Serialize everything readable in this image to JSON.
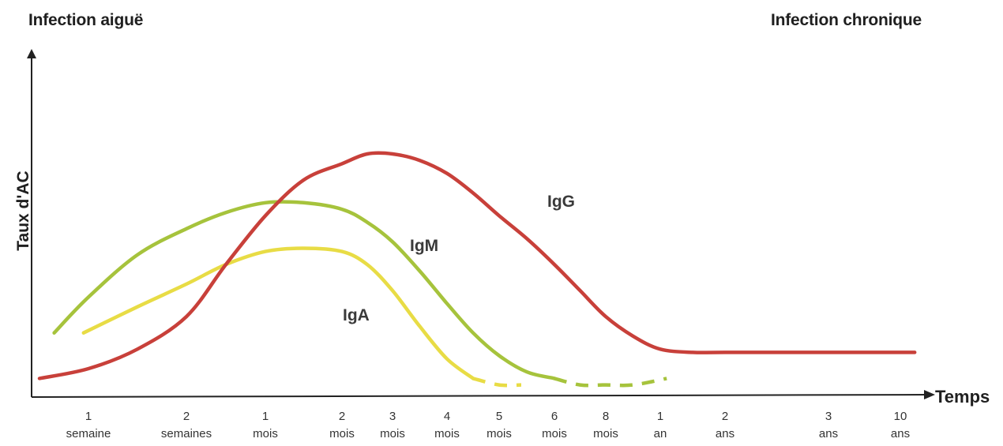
{
  "headings": {
    "left": "Infection aiguë",
    "right": "Infection chronique"
  },
  "chart_data": {
    "type": "line",
    "title": "",
    "xlabel": "Temps",
    "ylabel": "Taux d'AC",
    "x_ticks": [
      {
        "value": "1",
        "unit": "semaine"
      },
      {
        "value": "2",
        "unit": "semaines"
      },
      {
        "value": "1",
        "unit": "mois"
      },
      {
        "value": "2",
        "unit": "mois"
      },
      {
        "value": "3",
        "unit": "mois"
      },
      {
        "value": "4",
        "unit": "mois"
      },
      {
        "value": "5",
        "unit": "mois"
      },
      {
        "value": "6",
        "unit": "mois"
      },
      {
        "value": "8",
        "unit": "mois"
      },
      {
        "value": "1",
        "unit": "an"
      },
      {
        "value": "2",
        "unit": "ans"
      },
      {
        "value": "3",
        "unit": "ans"
      },
      {
        "value": "10",
        "unit": "ans"
      }
    ],
    "y_ticks": [],
    "grid": false,
    "legend": "none",
    "series": [
      {
        "name": "IgG",
        "color": "#c8403a",
        "points": [
          [
            -0.5,
            0.05
          ],
          [
            0.0,
            0.08
          ],
          [
            0.5,
            0.14
          ],
          [
            1.0,
            0.24
          ],
          [
            1.5,
            0.4
          ],
          [
            2.0,
            0.55
          ],
          [
            2.5,
            0.66
          ],
          [
            3.0,
            0.71
          ],
          [
            3.5,
            0.74
          ],
          [
            4.0,
            0.74
          ],
          [
            4.5,
            0.72
          ],
          [
            5.0,
            0.68
          ],
          [
            5.5,
            0.62
          ],
          [
            6.0,
            0.55
          ],
          [
            6.5,
            0.48
          ],
          [
            7.0,
            0.4
          ],
          [
            7.5,
            0.32
          ],
          [
            8.0,
            0.24
          ],
          [
            8.5,
            0.18
          ],
          [
            9.0,
            0.14
          ],
          [
            9.5,
            0.13
          ],
          [
            10.0,
            0.13
          ],
          [
            11.0,
            0.13
          ],
          [
            12.0,
            0.13
          ],
          [
            12.2,
            0.13
          ]
        ],
        "dashed_after_x": null
      },
      {
        "name": "IgM",
        "color": "#a6c33c",
        "points": [
          [
            -0.35,
            0.19
          ],
          [
            0.0,
            0.3
          ],
          [
            0.5,
            0.43
          ],
          [
            1.0,
            0.51
          ],
          [
            1.5,
            0.56
          ],
          [
            2.0,
            0.59
          ],
          [
            2.5,
            0.59
          ],
          [
            3.0,
            0.57
          ],
          [
            3.5,
            0.53
          ],
          [
            4.0,
            0.47
          ],
          [
            4.5,
            0.38
          ],
          [
            5.0,
            0.28
          ],
          [
            5.5,
            0.19
          ],
          [
            6.0,
            0.12
          ],
          [
            6.5,
            0.07
          ],
          [
            7.0,
            0.05
          ],
          [
            7.5,
            0.03
          ],
          [
            8.0,
            0.03
          ],
          [
            8.5,
            0.03
          ],
          [
            9.1,
            0.05
          ]
        ],
        "dashed_after_x": 6.7
      },
      {
        "name": "IgA",
        "color": "#e8dc45",
        "points": [
          [
            -0.05,
            0.19
          ],
          [
            0.5,
            0.27
          ],
          [
            1.0,
            0.34
          ],
          [
            1.5,
            0.4
          ],
          [
            2.0,
            0.44
          ],
          [
            2.5,
            0.45
          ],
          [
            3.0,
            0.44
          ],
          [
            3.5,
            0.4
          ],
          [
            4.0,
            0.32
          ],
          [
            4.5,
            0.21
          ],
          [
            5.0,
            0.11
          ],
          [
            5.5,
            0.05
          ],
          [
            6.0,
            0.03
          ],
          [
            6.4,
            0.03
          ]
        ],
        "dashed_after_x": 5.35
      }
    ],
    "annotations": [
      {
        "text": "IgG",
        "series": "IgG"
      },
      {
        "text": "IgM",
        "series": "IgM"
      },
      {
        "text": "IgA",
        "series": "IgA"
      }
    ]
  }
}
